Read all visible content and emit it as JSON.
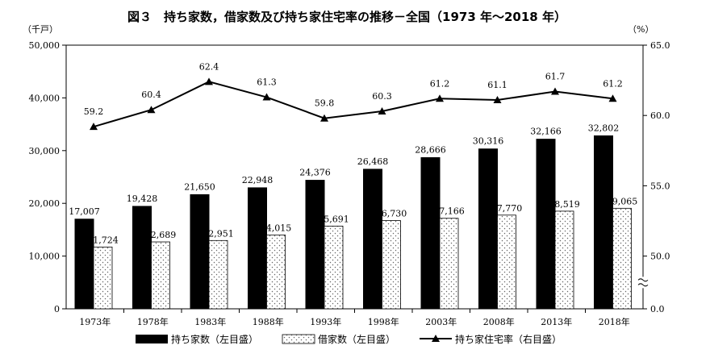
{
  "chart_data": {
    "type": "bar",
    "title": "図３　持ち家数，借家数及び持ち家住宅率の推移－全国（1973 年～2018 年）",
    "left_unit": "（千戸）",
    "right_unit": "（%）",
    "categories": [
      "1973年",
      "1978年",
      "1983年",
      "1988年",
      "1993年",
      "1998年",
      "2003年",
      "2008年",
      "2013年",
      "2018年"
    ],
    "series": [
      {
        "name": "持ち家数（左目盛）",
        "kind": "bar",
        "axis": "left",
        "values": [
          17007,
          19428,
          21650,
          22948,
          24376,
          26468,
          28666,
          30316,
          32166,
          32802
        ],
        "labels": [
          "17,007",
          "19,428",
          "21,650",
          "22,948",
          "24,376",
          "26,468",
          "28,666",
          "30,316",
          "32,166",
          "32,802"
        ],
        "color": "#000000"
      },
      {
        "name": "借家数（左目盛）",
        "kind": "bar",
        "axis": "left",
        "values": [
          11724,
          12689,
          12951,
          14015,
          15691,
          16730,
          17166,
          17770,
          18519,
          19065
        ],
        "labels": [
          "11,724",
          "12,689",
          "12,951",
          "14,015",
          "15,691",
          "16,730",
          "17,166",
          "17,770",
          "18,519",
          "19,065"
        ],
        "pattern": "dots"
      },
      {
        "name": "持ち家住宅率（右目盛）",
        "kind": "line",
        "axis": "right",
        "values": [
          59.2,
          60.4,
          62.4,
          61.3,
          59.8,
          60.3,
          61.2,
          61.1,
          61.7,
          61.2
        ],
        "labels": [
          "59.2",
          "60.4",
          "62.4",
          "61.3",
          "59.8",
          "60.3",
          "61.2",
          "61.1",
          "61.7",
          "61.2"
        ],
        "marker": "triangle"
      }
    ],
    "left_axis": {
      "ylim": [
        0,
        50000
      ],
      "ticks": [
        0,
        10000,
        20000,
        30000,
        40000,
        50000
      ],
      "tick_labels": [
        "0",
        "10,000",
        "20,000",
        "30,000",
        "40,000",
        "50,000"
      ]
    },
    "right_axis": {
      "ticks": [
        0,
        50,
        55,
        60,
        65
      ],
      "tick_labels": [
        "0.0",
        "50.0",
        "55.0",
        "60.0",
        "65.0"
      ],
      "broken": true,
      "break_range": [
        0,
        50
      ],
      "segment_range": [
        50,
        65
      ]
    },
    "grid": false,
    "legend_position": "bottom"
  }
}
